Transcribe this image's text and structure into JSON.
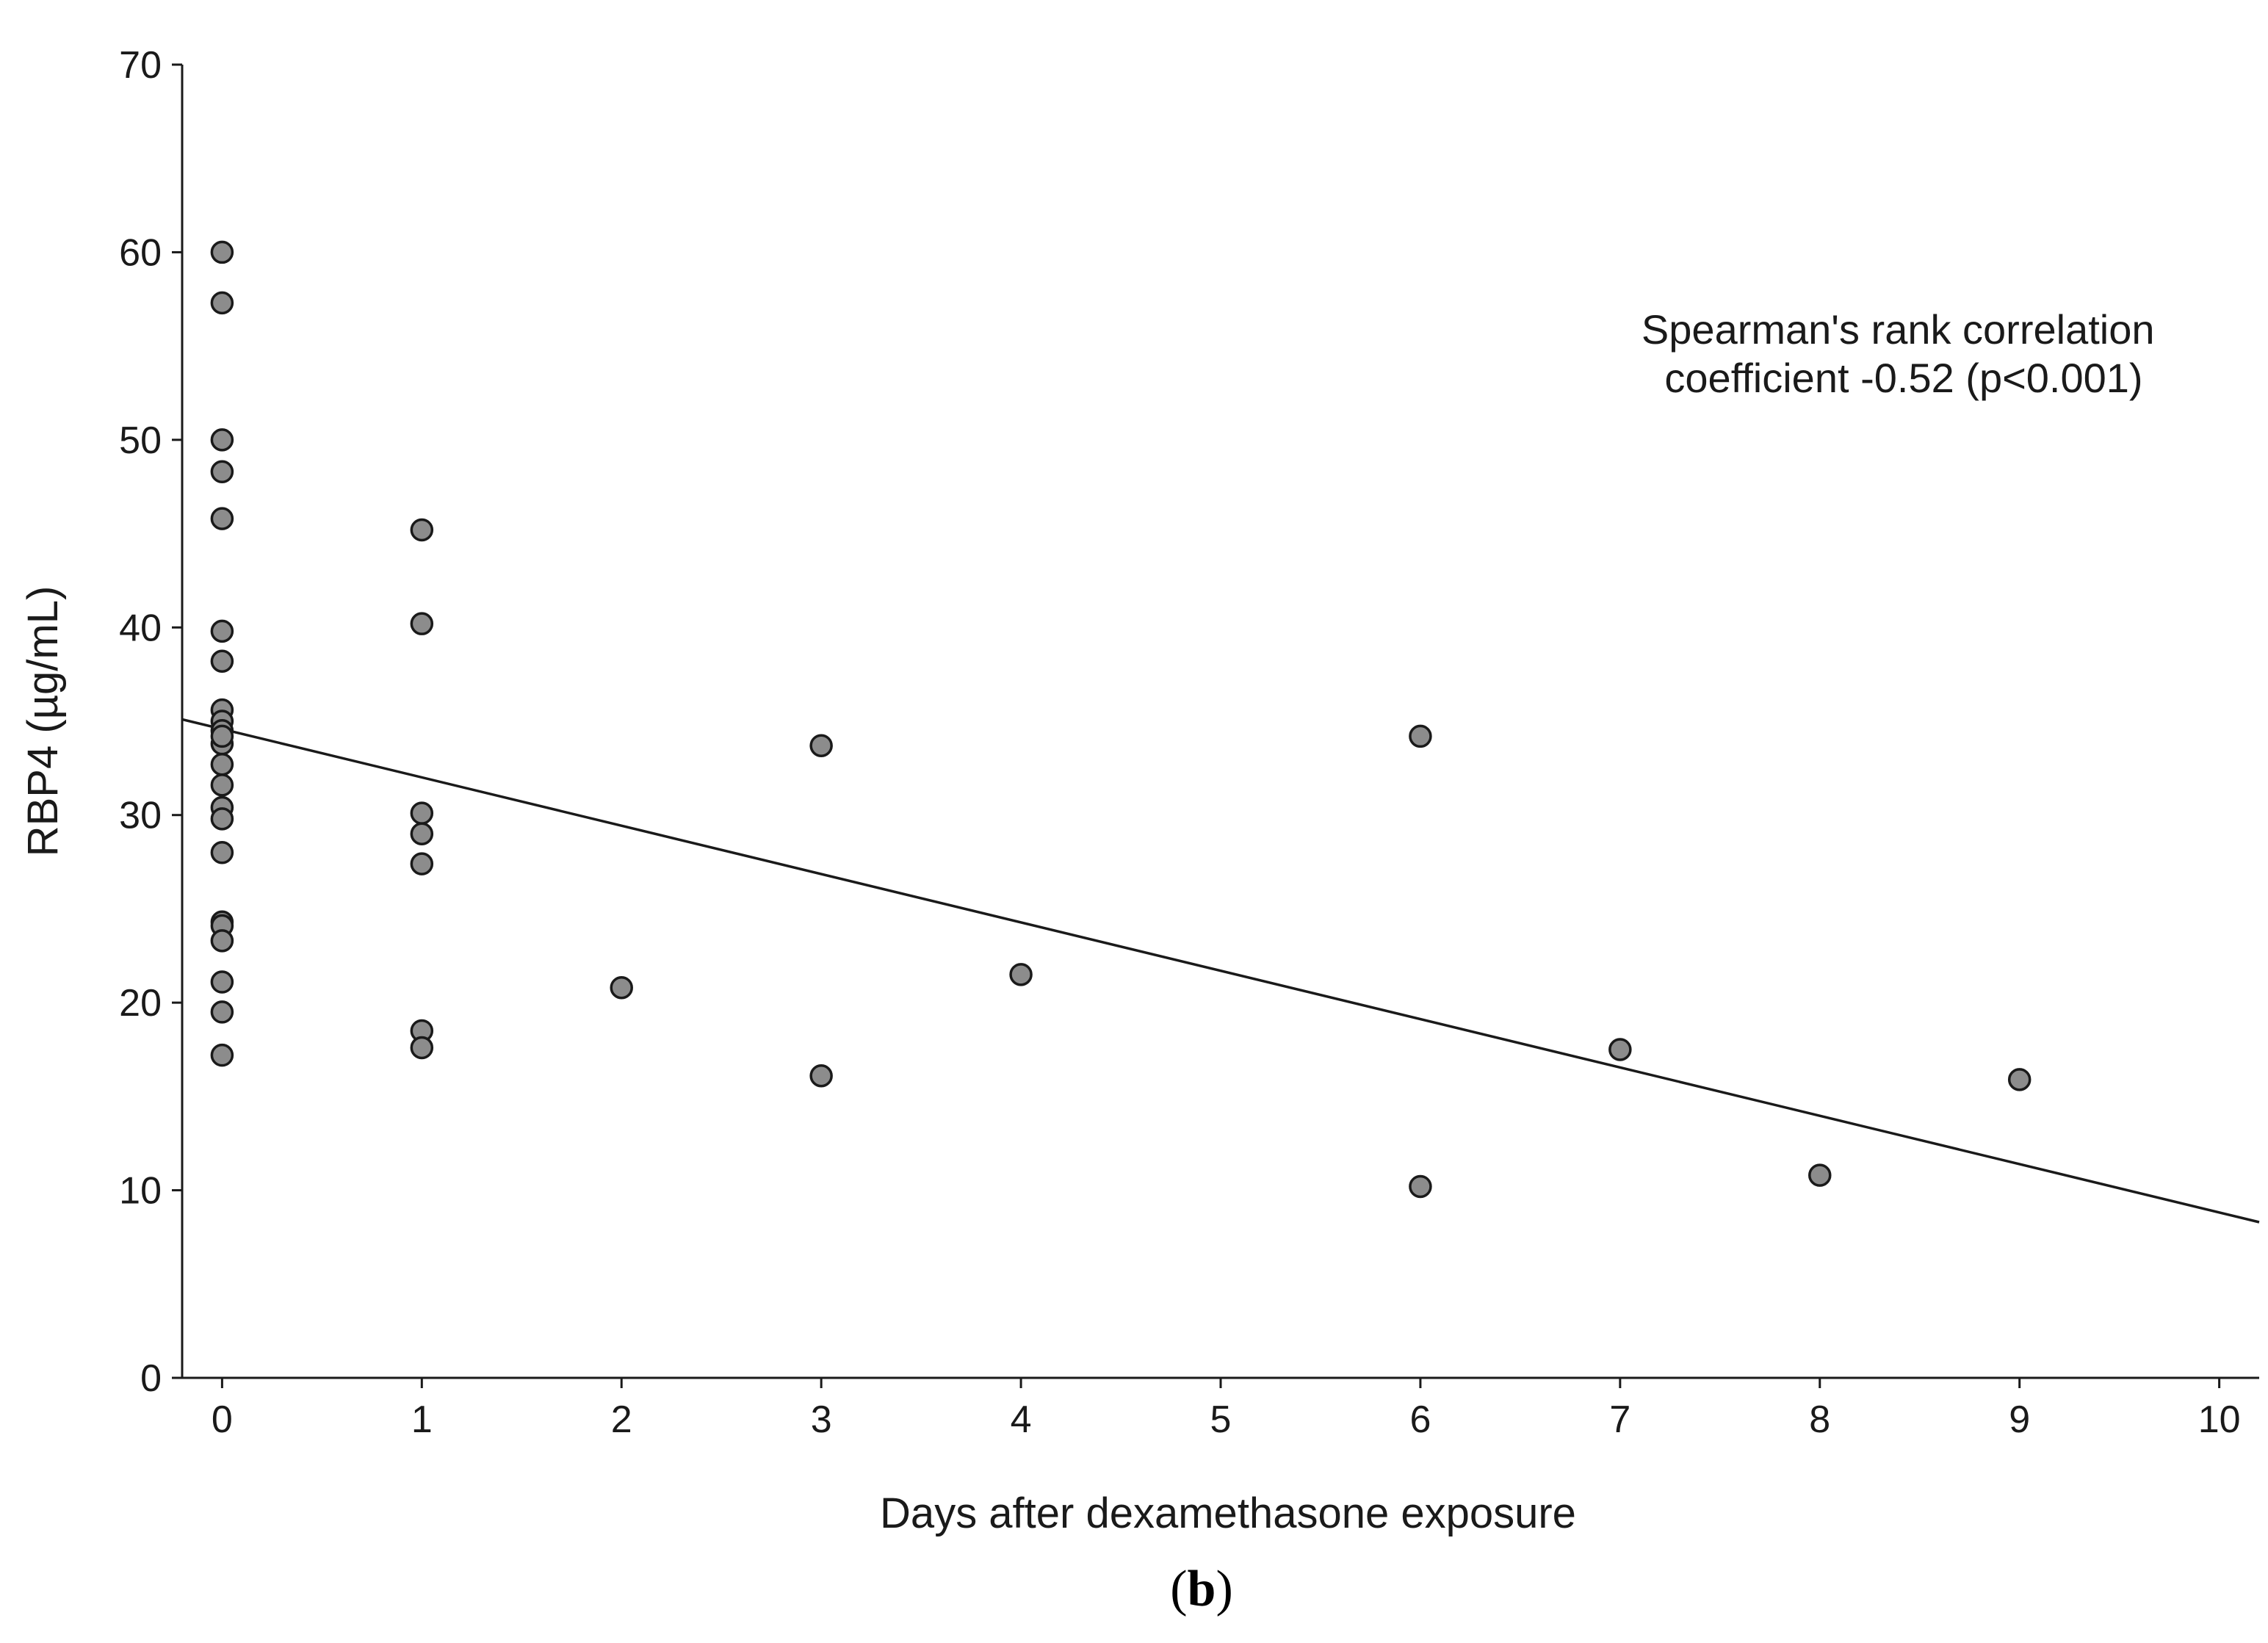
{
  "chart_data": {
    "type": "scatter",
    "title": "",
    "xlabel": "Days after dexamethasone exposure",
    "ylabel": "RBP4 (µg/mL)",
    "xlim": [
      -0.2,
      10.2
    ],
    "ylim": [
      0,
      70
    ],
    "x_ticks": [
      0,
      1,
      2,
      3,
      4,
      5,
      6,
      7,
      8,
      9,
      10
    ],
    "x_tick_labels": [
      "0",
      "1",
      "2",
      "3",
      "4",
      "5",
      "6",
      "7",
      "8",
      "9",
      "10"
    ],
    "y_ticks": [
      0,
      10,
      20,
      30,
      40,
      50,
      60,
      70
    ],
    "y_tick_labels": [
      "0",
      "10",
      "20",
      "30",
      "40",
      "50",
      "60",
      "70"
    ],
    "grid": false,
    "points": {
      "x": [
        0,
        0,
        0,
        0,
        0,
        0,
        0,
        0,
        0,
        0,
        0,
        0,
        0,
        0,
        0,
        0,
        0,
        0,
        0,
        0,
        0,
        0,
        0,
        1,
        1,
        1,
        1,
        1,
        1,
        1,
        2,
        3,
        3,
        4,
        6,
        6,
        7,
        8,
        9
      ],
      "y": [
        60.0,
        57.3,
        50.0,
        48.3,
        45.8,
        39.8,
        38.2,
        35.6,
        35.0,
        34.5,
        33.8,
        32.7,
        31.6,
        30.4,
        29.8,
        28.0,
        24.3,
        24.1,
        23.3,
        21.1,
        19.5,
        17.2,
        34.2,
        45.2,
        40.2,
        30.1,
        29.0,
        27.4,
        18.5,
        17.6,
        20.8,
        33.7,
        16.1,
        21.5,
        34.2,
        10.2,
        17.5,
        10.8,
        15.9
      ],
      "marker_fill": "#8c8c8c",
      "marker_edge": "#1a1a1a"
    },
    "fit_line": {
      "type": "linear",
      "x": [
        -0.2,
        10.2
      ],
      "y": [
        35.1,
        8.3
      ],
      "color": "#1a1a1a"
    },
    "annotation": {
      "lines": [
        "Spearman's rank correlation",
        "coefficient -0.52 (p<0.001)"
      ]
    }
  },
  "panel_label": {
    "open": "(",
    "letter": "b",
    "close": ")"
  }
}
